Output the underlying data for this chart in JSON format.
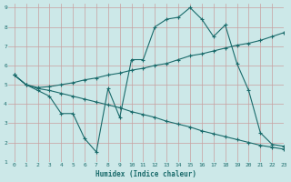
{
  "bg_color": "#cce8e8",
  "grid_color": "#b0d0d0",
  "line_color": "#1a6b6b",
  "line1_x": [
    0,
    1,
    2,
    3,
    4,
    5,
    6,
    7,
    8,
    9,
    10,
    11,
    12,
    13,
    14,
    15,
    16,
    17,
    18,
    19,
    20,
    21,
    22,
    23
  ],
  "line1_y": [
    5.5,
    5.0,
    4.7,
    4.4,
    3.5,
    3.5,
    2.2,
    1.5,
    4.8,
    3.3,
    6.3,
    6.3,
    8.0,
    8.4,
    8.5,
    9.0,
    8.4,
    7.5,
    8.1,
    6.1,
    4.7,
    2.5,
    1.9,
    1.8
  ],
  "line2_x": [
    0,
    1,
    2,
    3,
    4,
    5,
    6,
    7,
    8,
    9,
    10,
    11,
    12,
    13,
    14,
    15,
    16,
    17,
    18,
    19,
    20,
    21,
    22,
    23
  ],
  "line2_y": [
    5.5,
    5.0,
    4.85,
    4.9,
    5.0,
    5.1,
    5.25,
    5.35,
    5.5,
    5.6,
    5.75,
    5.85,
    6.0,
    6.1,
    6.3,
    6.5,
    6.6,
    6.75,
    6.9,
    7.05,
    7.15,
    7.3,
    7.5,
    7.7
  ],
  "line3_x": [
    0,
    1,
    2,
    3,
    4,
    5,
    6,
    7,
    8,
    9,
    10,
    11,
    12,
    13,
    14,
    15,
    16,
    17,
    18,
    19,
    20,
    21,
    22,
    23
  ],
  "line3_y": [
    5.5,
    5.0,
    4.8,
    4.7,
    4.55,
    4.4,
    4.25,
    4.1,
    3.95,
    3.8,
    3.6,
    3.45,
    3.3,
    3.1,
    2.95,
    2.8,
    2.6,
    2.45,
    2.3,
    2.15,
    2.0,
    1.85,
    1.75,
    1.65
  ],
  "xlabel": "Humidex (Indice chaleur)",
  "xlim": [
    -0.5,
    23
  ],
  "ylim": [
    1,
    9.2
  ],
  "xticks": [
    0,
    1,
    2,
    3,
    4,
    5,
    6,
    7,
    8,
    9,
    10,
    11,
    12,
    13,
    14,
    15,
    16,
    17,
    18,
    19,
    20,
    21,
    22,
    23
  ],
  "yticks": [
    1,
    2,
    3,
    4,
    5,
    6,
    7,
    8,
    9
  ]
}
